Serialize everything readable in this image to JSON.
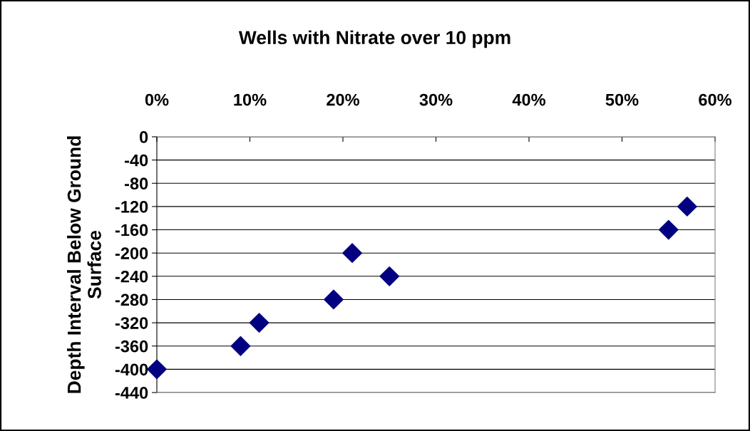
{
  "chart_data": {
    "type": "scatter",
    "title": "Wells with Nitrate over 10 ppm",
    "ylabel": "Depth Interval Below Ground\nSurface",
    "x": [
      0,
      9,
      11,
      19,
      21,
      25,
      55,
      57
    ],
    "series": [
      {
        "color": "#000080",
        "values": [
          -400,
          -360,
          -320,
          -280,
          -200,
          -240,
          -160,
          -120
        ]
      }
    ],
    "marker": "diamond",
    "xlim": [
      0,
      60
    ],
    "xticks": [
      {
        "value": 0,
        "label": "0%"
      },
      {
        "value": 10,
        "label": "10%"
      },
      {
        "value": 20,
        "label": "20%"
      },
      {
        "value": 30,
        "label": "30%"
      },
      {
        "value": 40,
        "label": "40%"
      },
      {
        "value": 50,
        "label": "50%"
      },
      {
        "value": 60,
        "label": "60%"
      }
    ],
    "ylim": [
      -440,
      0
    ],
    "yticks": [
      0,
      -40,
      -80,
      -120,
      -160,
      -200,
      -240,
      -280,
      -320,
      -360,
      -400,
      -440
    ],
    "grid": "y"
  }
}
